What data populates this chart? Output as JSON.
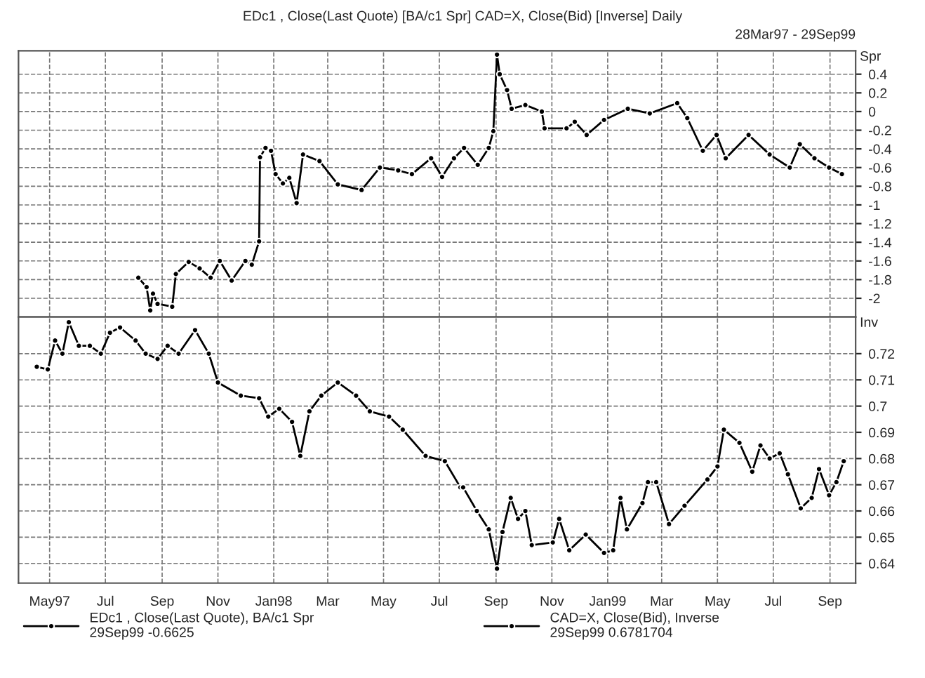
{
  "chart_data": [
    {
      "type": "line",
      "title": "EDc1 , Close(Last Quote) [BA/c1 Spr] CAD=X, Close(Bid) [Inverse] Daily",
      "subtitle": "28Mar97 - 29Sep99",
      "ylabel": "Spr",
      "series": [
        {
          "name": "EDc1 , Close(Last Quote), BA/c1 Spr",
          "color": "#000000",
          "x": [
            "1997-08-06",
            "1997-08-15",
            "1997-08-19",
            "1997-08-22",
            "1997-08-27",
            "1997-09-12",
            "1997-09-16",
            "1997-09-30",
            "1997-10-12",
            "1997-10-24",
            "1997-11-03",
            "1997-11-16",
            "1997-12-01",
            "1997-12-08",
            "1997-12-16",
            "1997-12-17",
            "1997-12-23",
            "1997-12-29",
            "1998-01-03",
            "1998-01-11",
            "1998-01-18",
            "1998-01-26",
            "1998-02-02",
            "1998-02-20",
            "1998-03-12",
            "1998-04-07",
            "1998-04-27",
            "1998-05-17",
            "1998-06-01",
            "1998-06-22",
            "1998-07-04",
            "1998-07-17",
            "1998-07-28",
            "1998-08-12",
            "1998-08-24",
            "1998-08-29",
            "1998-09-02",
            "1998-09-05",
            "1998-09-13",
            "1998-09-18",
            "1998-10-03",
            "1998-10-21",
            "1998-10-24",
            "1998-11-17",
            "1998-11-26",
            "1998-12-09",
            "1998-12-28",
            "1999-01-23",
            "1999-02-16",
            "1999-03-18",
            "1999-03-29",
            "1999-04-15",
            "1999-04-30",
            "1999-05-10",
            "1999-06-04",
            "1999-06-27",
            "1999-07-19",
            "1999-07-30",
            "1999-08-15",
            "1999-08-31",
            "1999-09-14"
          ],
          "values": [
            -1.78,
            -1.88,
            -2.13,
            -1.95,
            -2.06,
            -2.09,
            -1.74,
            -1.61,
            -1.68,
            -1.78,
            -1.6,
            -1.81,
            -1.6,
            -1.64,
            -1.39,
            -0.49,
            -0.39,
            -0.42,
            -0.67,
            -0.77,
            -0.71,
            -0.98,
            -0.46,
            -0.53,
            -0.78,
            -0.84,
            -0.6,
            -0.63,
            -0.67,
            -0.5,
            -0.7,
            -0.5,
            -0.39,
            -0.57,
            -0.39,
            -0.21,
            0.61,
            0.4,
            0.23,
            0.03,
            0.07,
            0.0,
            -0.18,
            -0.18,
            -0.11,
            -0.25,
            -0.09,
            0.03,
            -0.02,
            0.09,
            -0.07,
            -0.42,
            -0.25,
            -0.5,
            -0.25,
            -0.46,
            -0.6,
            -0.35,
            -0.5,
            -0.6,
            -0.67
          ]
        }
      ],
      "xlim": [
        "1997-03-28",
        "1999-09-29"
      ],
      "xticks": [
        {
          "value": "1997-05-01",
          "label": null
        },
        {
          "value": "1997-07-01",
          "label": null
        },
        {
          "value": "1997-09-01",
          "label": null
        },
        {
          "value": "1997-11-01",
          "label": null
        },
        {
          "value": "1998-01-01",
          "label": null
        },
        {
          "value": "1998-03-01",
          "label": null
        },
        {
          "value": "1998-05-01",
          "label": null
        },
        {
          "value": "1998-07-01",
          "label": null
        },
        {
          "value": "1998-09-01",
          "label": null
        },
        {
          "value": "1998-11-01",
          "label": null
        },
        {
          "value": "1999-01-01",
          "label": null
        },
        {
          "value": "1999-03-01",
          "label": null
        },
        {
          "value": "1999-05-01",
          "label": null
        },
        {
          "value": "1999-07-01",
          "label": null
        },
        {
          "value": "1999-09-01",
          "label": null
        }
      ],
      "ylim": [
        -2.2,
        0.65
      ],
      "yticks": [
        0.4,
        0.2,
        0,
        -0.2,
        -0.4,
        -0.6,
        -0.8,
        -1,
        -1.2,
        -1.4,
        -1.6,
        -1.8,
        -2
      ],
      "tick_labels": "y",
      "grid": true,
      "marker": "circle",
      "line_style": "solid",
      "legend": "bottom left",
      "annotations": [
        "29Sep99 -0.6625"
      ]
    },
    {
      "type": "line",
      "ylabel": "Inv",
      "series": [
        {
          "name": "CAD=X, Close(Bid), Inverse",
          "color": "#000000",
          "x": [
            "1997-04-17",
            "1997-04-29",
            "1997-05-07",
            "1997-05-15",
            "1997-05-22",
            "1997-06-02",
            "1997-06-14",
            "1997-06-26",
            "1997-07-06",
            "1997-07-17",
            "1997-08-03",
            "1997-08-14",
            "1997-08-27",
            "1997-09-07",
            "1997-09-19",
            "1997-10-07",
            "1997-10-22",
            "1997-11-01",
            "1997-11-26",
            "1997-12-16",
            "1997-12-26",
            "1998-01-07",
            "1998-01-21",
            "1998-01-30",
            "1998-02-09",
            "1998-02-22",
            "1998-03-12",
            "1998-04-01",
            "1998-04-16",
            "1998-05-07",
            "1998-05-22",
            "1998-06-16",
            "1998-07-07",
            "1998-07-24",
            "1998-07-27",
            "1998-08-11",
            "1998-08-24",
            "1998-09-02",
            "1998-09-08",
            "1998-09-17",
            "1998-09-25",
            "1998-10-03",
            "1998-10-10",
            "1998-11-02",
            "1998-11-09",
            "1998-11-20",
            "1998-12-08",
            "1998-12-28",
            "1999-01-07",
            "1999-01-15",
            "1999-01-22",
            "1999-02-08",
            "1999-02-14",
            "1999-02-23",
            "1999-03-09",
            "1999-03-26",
            "1999-04-20",
            "1999-05-01",
            "1999-05-08",
            "1999-05-25",
            "1999-06-08",
            "1999-06-17",
            "1999-06-27",
            "1999-07-08",
            "1999-07-17",
            "1999-07-31",
            "1999-08-12",
            "1999-08-20",
            "1999-08-31",
            "1999-09-08",
            "1999-09-16"
          ],
          "values": [
            0.715,
            0.714,
            0.725,
            0.72,
            0.732,
            0.723,
            0.723,
            0.72,
            0.728,
            0.73,
            0.725,
            0.72,
            0.718,
            0.723,
            0.72,
            0.729,
            0.72,
            0.709,
            0.704,
            0.703,
            0.696,
            0.699,
            0.694,
            0.681,
            0.698,
            0.704,
            0.709,
            0.704,
            0.698,
            0.696,
            0.691,
            0.681,
            0.679,
            0.669,
            0.669,
            0.66,
            0.653,
            0.638,
            0.652,
            0.665,
            0.657,
            0.66,
            0.647,
            0.648,
            0.657,
            0.645,
            0.651,
            0.644,
            0.645,
            0.665,
            0.653,
            0.663,
            0.671,
            0.671,
            0.655,
            0.662,
            0.672,
            0.677,
            0.691,
            0.686,
            0.675,
            0.685,
            0.68,
            0.682,
            0.674,
            0.661,
            0.665,
            0.676,
            0.666,
            0.671,
            0.679
          ]
        }
      ],
      "xlim": [
        "1997-03-28",
        "1999-09-29"
      ],
      "xticks": [
        {
          "value": "1997-05-01",
          "label": "May97"
        },
        {
          "value": "1997-07-01",
          "label": "Jul"
        },
        {
          "value": "1997-09-01",
          "label": "Sep"
        },
        {
          "value": "1997-11-01",
          "label": "Nov"
        },
        {
          "value": "1998-01-01",
          "label": "Jan98"
        },
        {
          "value": "1998-03-01",
          "label": "Mar"
        },
        {
          "value": "1998-05-01",
          "label": "May"
        },
        {
          "value": "1998-07-01",
          "label": "Jul"
        },
        {
          "value": "1998-09-01",
          "label": "Sep"
        },
        {
          "value": "1998-11-01",
          "label": "Nov"
        },
        {
          "value": "1999-01-01",
          "label": "Jan99"
        },
        {
          "value": "1999-03-01",
          "label": "Mar"
        },
        {
          "value": "1999-05-01",
          "label": "May"
        },
        {
          "value": "1999-07-01",
          "label": "Jul"
        },
        {
          "value": "1999-09-01",
          "label": "Sep"
        }
      ],
      "ylim": [
        0.6325,
        0.734
      ],
      "yticks": [
        0.72,
        0.71,
        0.7,
        0.69,
        0.68,
        0.67,
        0.66,
        0.65,
        0.64
      ],
      "grid": true,
      "marker": "circle",
      "line_style": "solid",
      "legend": "bottom right",
      "annotations": [
        "29Sep99 0.6781704"
      ]
    }
  ]
}
